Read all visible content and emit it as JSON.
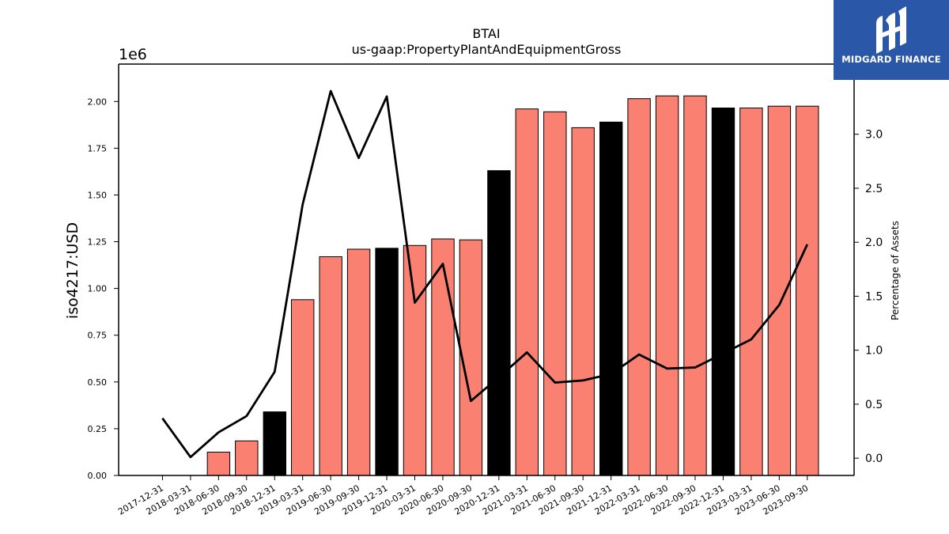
{
  "chart_data": {
    "type": "bar",
    "title": "BTAI",
    "subtitle": "us-gaap:PropertyPlantAndEquipmentGross",
    "ylabel": "iso4217:USD",
    "y2label": "Percentage of Assets",
    "y_multiplier_label": "1e6",
    "categories": [
      "2017-12-31",
      "2018-03-31",
      "2018-06-30",
      "2018-09-30",
      "2018-12-31",
      "2019-03-31",
      "2019-06-30",
      "2019-09-30",
      "2019-12-31",
      "2020-03-31",
      "2020-06-30",
      "2020-09-30",
      "2020-12-31",
      "2021-03-31",
      "2021-06-30",
      "2021-09-30",
      "2021-12-31",
      "2022-03-31",
      "2022-06-30",
      "2022-09-30",
      "2022-12-31",
      "2023-03-31",
      "2023-06-30",
      "2023-09-30"
    ],
    "series": [
      {
        "values": [
          0,
          0,
          0.125,
          0.185,
          0.34,
          0.94,
          1.17,
          1.21,
          1.215,
          1.23,
          1.265,
          1.26,
          1.63,
          1.96,
          1.945,
          1.86,
          1.89,
          2.015,
          2.03,
          2.03,
          1.965,
          1.965,
          1.975,
          1.975
        ],
        "highlight": [
          false,
          false,
          false,
          false,
          true,
          false,
          false,
          false,
          true,
          false,
          false,
          false,
          true,
          false,
          false,
          false,
          true,
          false,
          false,
          false,
          true,
          false,
          false,
          false
        ],
        "color": "#fa8072",
        "highlight_color": "#000000"
      },
      {
        "values": [
          0.37,
          0.01,
          0.24,
          0.39,
          0.8,
          2.35,
          3.4,
          2.78,
          3.35,
          1.44,
          1.8,
          0.53,
          0.75,
          0.98,
          0.7,
          0.72,
          0.78,
          0.96,
          0.83,
          0.84,
          0.97,
          1.1,
          1.42,
          1.98
        ],
        "axis": "right",
        "color": "#000000"
      }
    ],
    "ylim": [
      0,
      2.2
    ],
    "y2lim": [
      -0.16,
      3.65
    ],
    "yticks": [
      "0.00",
      "0.25",
      "0.50",
      "0.75",
      "1.00",
      "1.25",
      "1.50",
      "1.75",
      "2.00"
    ],
    "y2ticks": [
      "0.0",
      "0.5",
      "1.0",
      "1.5",
      "2.0",
      "2.5",
      "3.0"
    ],
    "grid": false,
    "legend": "none"
  },
  "branding": {
    "logo_text": "MIDGARD FINANCE",
    "logo_color": "#2a57a8"
  }
}
